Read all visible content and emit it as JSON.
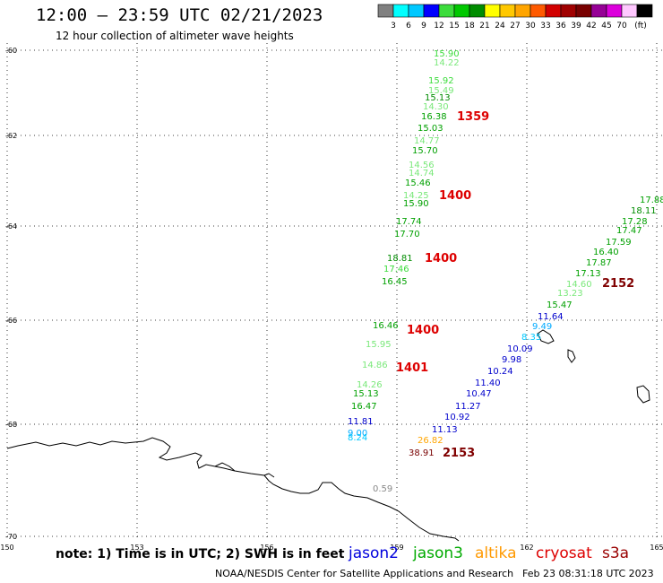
{
  "header": {
    "title": "12:00 – 23:59 UTC 02/21/2023",
    "subtitle": "12 hour collection of altimeter wave heights"
  },
  "legend": {
    "colors": [
      "#808080",
      "#00ffff",
      "#00c8ff",
      "#0000ff",
      "#3cdc3c",
      "#00c800",
      "#008c00",
      "#ffff00",
      "#ffc800",
      "#ffa500",
      "#ff5a00",
      "#d20000",
      "#a00000",
      "#780000",
      "#960096",
      "#dc00dc",
      "#ffc8ff",
      "#000000"
    ],
    "labels": [
      "3",
      "6",
      "9",
      "12",
      "15",
      "18",
      "21",
      "24",
      "27",
      "30",
      "33",
      "36",
      "39",
      "42",
      "45",
      "70"
    ],
    "unit": "(ft)"
  },
  "axes": {
    "lat_labels": [
      "-60",
      "-62",
      "-64",
      "-66",
      "-68",
      "-70"
    ],
    "lon_labels": [
      "150",
      "153",
      "156",
      "159",
      "162",
      "165"
    ]
  },
  "footer": {
    "note": "note:  1) Time is in UTC;  2) SWH is in feet",
    "credit": "NOAA/NESDIS Center for Satellite Applications and Research",
    "stamp": "Feb 23 08:31:18 UTC 2023"
  },
  "satellites": [
    {
      "name": "jason2",
      "color": "#0000dd"
    },
    {
      "name": "jason3",
      "color": "#00aa00"
    },
    {
      "name": "altika",
      "color": "#ff9900"
    },
    {
      "name": "cryosat",
      "color": "#dd0000"
    },
    {
      "name": "s3a",
      "color": "#990000"
    }
  ],
  "track_a": {
    "values": [
      {
        "text": "15.90",
        "color": "#3cdc3c"
      },
      {
        "text": "14.22",
        "color": "#7ae87a"
      },
      {
        "text": "15.92",
        "color": "#3cdc3c"
      },
      {
        "text": "15.49",
        "color": "#7ae87a"
      },
      {
        "text": "15.13",
        "color": "#008c00"
      },
      {
        "text": "14.30",
        "color": "#7ae87a"
      },
      {
        "text": "16.38",
        "color": "#00a000"
      },
      {
        "text": "15.03",
        "color": "#00a000"
      },
      {
        "text": "14.77",
        "color": "#7ae87a"
      },
      {
        "text": "15.70",
        "color": "#00a000"
      },
      {
        "text": "14.56",
        "color": "#7ae87a"
      },
      {
        "text": "14.74",
        "color": "#7ae87a"
      },
      {
        "text": "15.46",
        "color": "#00a000"
      },
      {
        "text": "14.25",
        "color": "#7ae87a"
      },
      {
        "text": "15.90",
        "color": "#00a000"
      },
      {
        "text": "17.74",
        "color": "#00a000"
      },
      {
        "text": "17.70",
        "color": "#00a000"
      },
      {
        "text": "18.81",
        "color": "#008c00"
      },
      {
        "text": "17.46",
        "color": "#3cdc3c"
      },
      {
        "text": "16.45",
        "color": "#00a000"
      },
      {
        "text": "16.46",
        "color": "#00a000"
      },
      {
        "text": "15.95",
        "color": "#7ae87a"
      },
      {
        "text": "14.86",
        "color": "#7ae87a"
      },
      {
        "text": "14.26",
        "color": "#7ae87a"
      },
      {
        "text": "15.13",
        "color": "#00a000"
      },
      {
        "text": "16.47",
        "color": "#00a000"
      },
      {
        "text": "11.81",
        "color": "#0000cc"
      },
      {
        "text": "9.00",
        "color": "#00aaff"
      },
      {
        "text": "8.24",
        "color": "#00c8ff"
      }
    ],
    "times": [
      "1359",
      "1400",
      "1400",
      "1400",
      "1401"
    ]
  },
  "track_b": {
    "values": [
      {
        "text": "17.88",
        "color": "#00a000"
      },
      {
        "text": "18.11",
        "color": "#008c00"
      },
      {
        "text": "17.28",
        "color": "#00a000"
      },
      {
        "text": "17.47",
        "color": "#00a000"
      },
      {
        "text": "17.59",
        "color": "#00a000"
      },
      {
        "text": "16.40",
        "color": "#00a000"
      },
      {
        "text": "17.87",
        "color": "#00a000"
      },
      {
        "text": "17.13",
        "color": "#00a000"
      },
      {
        "text": "14.60",
        "color": "#7ae87a"
      },
      {
        "text": "13.23",
        "color": "#7ae87a"
      },
      {
        "text": "15.47",
        "color": "#00a000"
      },
      {
        "text": "11.64",
        "color": "#0000cc"
      },
      {
        "text": "9.49",
        "color": "#00aaff"
      },
      {
        "text": "8.35",
        "color": "#00c8ff"
      },
      {
        "text": "10.09",
        "color": "#0000cc"
      },
      {
        "text": "9.98",
        "color": "#0000cc"
      },
      {
        "text": "10.24",
        "color": "#0000cc"
      },
      {
        "text": "11.40",
        "color": "#0000cc"
      },
      {
        "text": "10.47",
        "color": "#0000cc"
      },
      {
        "text": "11.27",
        "color": "#0000cc"
      },
      {
        "text": "10.92",
        "color": "#0000cc"
      },
      {
        "text": "11.13",
        "color": "#0000cc"
      },
      {
        "text": "26.82",
        "color": "#ffa500"
      },
      {
        "text": "38.91",
        "color": "#780000"
      },
      {
        "text": "0.59",
        "color": "#888888"
      }
    ],
    "times": [
      "2152",
      "2153"
    ]
  }
}
